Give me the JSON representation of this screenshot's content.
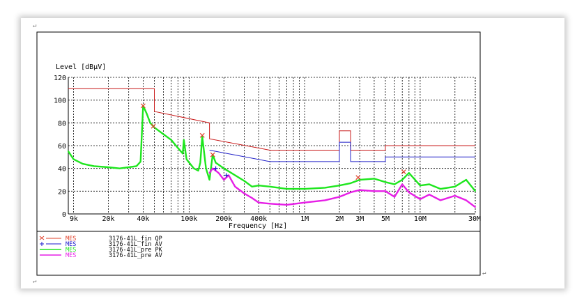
{
  "doc": {
    "paragraph_mark": "↵"
  },
  "chart_data": {
    "type": "line",
    "title": "",
    "ylabel": "Level [dBμV]",
    "xlabel": "Frequency [Hz]",
    "x_scale": "log",
    "xlim": [
      9000,
      30000000
    ],
    "ylim": [
      0,
      120
    ],
    "grid": true,
    "x_ticks": [
      {
        "label": "9k",
        "value": 9000
      },
      {
        "label": "20k",
        "value": 20000
      },
      {
        "label": "40k",
        "value": 40000
      },
      {
        "label": "100k",
        "value": 100000
      },
      {
        "label": "200k",
        "value": 200000
      },
      {
        "label": "400k",
        "value": 400000
      },
      {
        "label": "1M",
        "value": 1000000
      },
      {
        "label": "2M",
        "value": 2000000
      },
      {
        "label": "3M",
        "value": 3000000
      },
      {
        "label": "5M",
        "value": 5000000
      },
      {
        "label": "10M",
        "value": 10000000
      },
      {
        "label": "30M",
        "value": 30000000
      }
    ],
    "y_ticks": [
      0,
      20,
      40,
      60,
      80,
      100,
      120
    ],
    "series": [
      {
        "name": "MES 3176-41L_fin QP",
        "style": "marker-x",
        "color": "#e0402a",
        "x": [
          40000,
          49000,
          130000,
          160000,
          2900000,
          7200000
        ],
        "y": [
          95,
          77,
          69,
          52,
          32,
          37
        ]
      },
      {
        "name": "MES 3176-41L_fin AV",
        "style": "marker-plus",
        "color": "#1a1acc",
        "x": [
          170000,
          210000
        ],
        "y": [
          40,
          34
        ]
      },
      {
        "name": "MES 3176-41L_pre PK",
        "style": "trace",
        "color": "#1ee61e",
        "x": [
          9000,
          10000,
          12000,
          15000,
          20000,
          25000,
          30000,
          35000,
          38000,
          40000,
          43000,
          46000,
          50000,
          60000,
          70000,
          80000,
          88000,
          90000,
          95000,
          110000,
          120000,
          125000,
          130000,
          140000,
          150000,
          160000,
          170000,
          200000,
          250000,
          300000,
          350000,
          400000,
          500000,
          700000,
          1000000,
          1500000,
          2000000,
          2500000,
          3000000,
          4000000,
          5000000,
          6000000,
          7000000,
          8000000,
          10000000,
          12000000,
          15000000,
          20000000,
          25000000,
          30000000
        ],
        "y": [
          55,
          48,
          44,
          42,
          41,
          40,
          41,
          42,
          46,
          95,
          88,
          80,
          76,
          70,
          65,
          58,
          53,
          65,
          48,
          40,
          38,
          45,
          68,
          40,
          30,
          52,
          45,
          40,
          34,
          29,
          24,
          25,
          24,
          22,
          22,
          23,
          25,
          27,
          30,
          31,
          28,
          26,
          30,
          36,
          25,
          26,
          22,
          24,
          30,
          20
        ]
      },
      {
        "name": "MES 3176-41L_pre AV",
        "style": "trace",
        "color": "#e61ee6",
        "x": [
          150000,
          160000,
          180000,
          200000,
          220000,
          250000,
          300000,
          350000,
          400000,
          500000,
          700000,
          1000000,
          1500000,
          2000000,
          2500000,
          3000000,
          4000000,
          5000000,
          6000000,
          7000000,
          8000000,
          10000000,
          12000000,
          15000000,
          20000000,
          25000000,
          30000000
        ],
        "y": [
          36,
          40,
          36,
          30,
          34,
          24,
          18,
          14,
          10,
          9,
          8,
          10,
          12,
          15,
          19,
          21,
          20,
          20,
          15,
          26,
          19,
          13,
          17,
          12,
          16,
          12,
          6
        ]
      }
    ],
    "limit_lines": [
      {
        "color": "#c81818",
        "x": [
          9000,
          50000,
          50000,
          150000,
          150000,
          500000,
          2000000,
          2000000,
          2500000,
          2500000,
          5000000,
          5000000,
          30000000
        ],
        "y": [
          110,
          110,
          90,
          80,
          66,
          56,
          56,
          73,
          73,
          56,
          56,
          60,
          60
        ]
      },
      {
        "color": "#2020c8",
        "x": [
          150000,
          500000,
          2000000,
          2000000,
          2500000,
          2500000,
          5000000,
          5000000,
          30000000
        ],
        "y": [
          56,
          46,
          46,
          63,
          63,
          46,
          46,
          50,
          50
        ]
      }
    ]
  }
}
